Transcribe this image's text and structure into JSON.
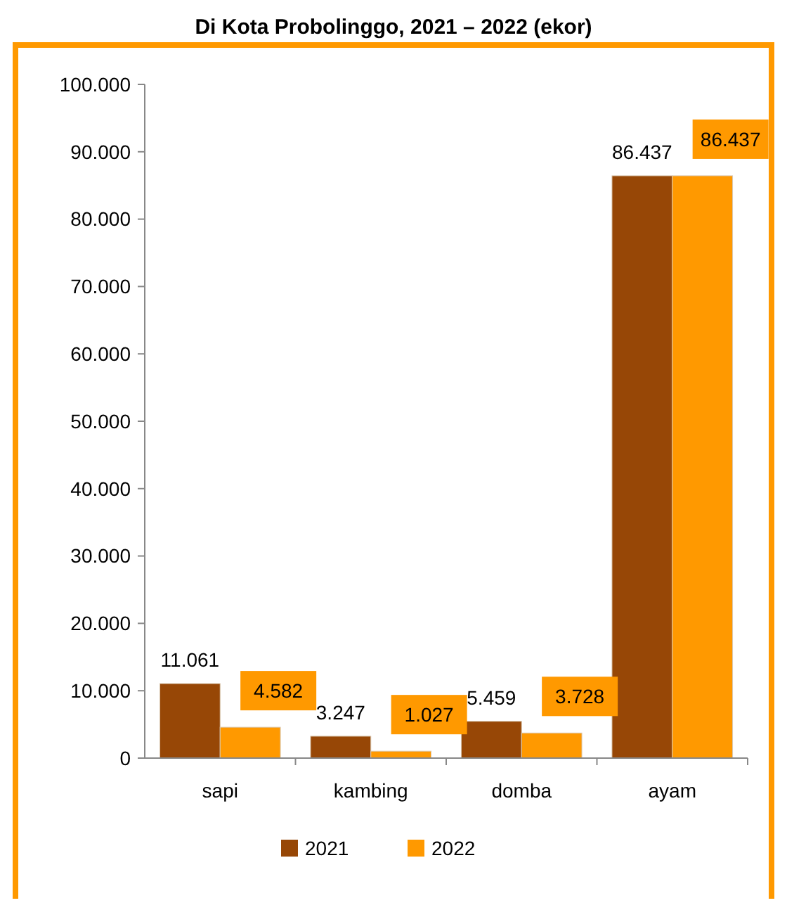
{
  "chart_data": {
    "type": "bar",
    "title": "Di Kota Probolinggo, 2021 – 2022 (ekor)",
    "categories": [
      "sapi",
      "kambing",
      "domba",
      "ayam"
    ],
    "series": [
      {
        "name": "2021",
        "color": "#974706",
        "values": [
          11061,
          3247,
          5459,
          86437
        ],
        "value_labels": [
          "11.061",
          "3.247",
          "5.459",
          "86.437"
        ]
      },
      {
        "name": "2022",
        "color": "#ff9900",
        "values": [
          4582,
          1027,
          3728,
          86437
        ],
        "value_labels": [
          "4.582",
          "1.027",
          "3.728",
          "86.437"
        ]
      }
    ],
    "ylim": [
      0,
      100000
    ],
    "yticks": [
      {
        "value": 0,
        "label": "0"
      },
      {
        "value": 10000,
        "label": "10.000"
      },
      {
        "value": 20000,
        "label": "20.000"
      },
      {
        "value": 30000,
        "label": "30.000"
      },
      {
        "value": 40000,
        "label": "40.000"
      },
      {
        "value": 50000,
        "label": "50.000"
      },
      {
        "value": 60000,
        "label": "60.000"
      },
      {
        "value": 70000,
        "label": "70.000"
      },
      {
        "value": 80000,
        "label": "80.000"
      },
      {
        "value": 90000,
        "label": "90.000"
      },
      {
        "value": 100000,
        "label": "100.000"
      }
    ],
    "grid": false,
    "legend": "bottom"
  }
}
